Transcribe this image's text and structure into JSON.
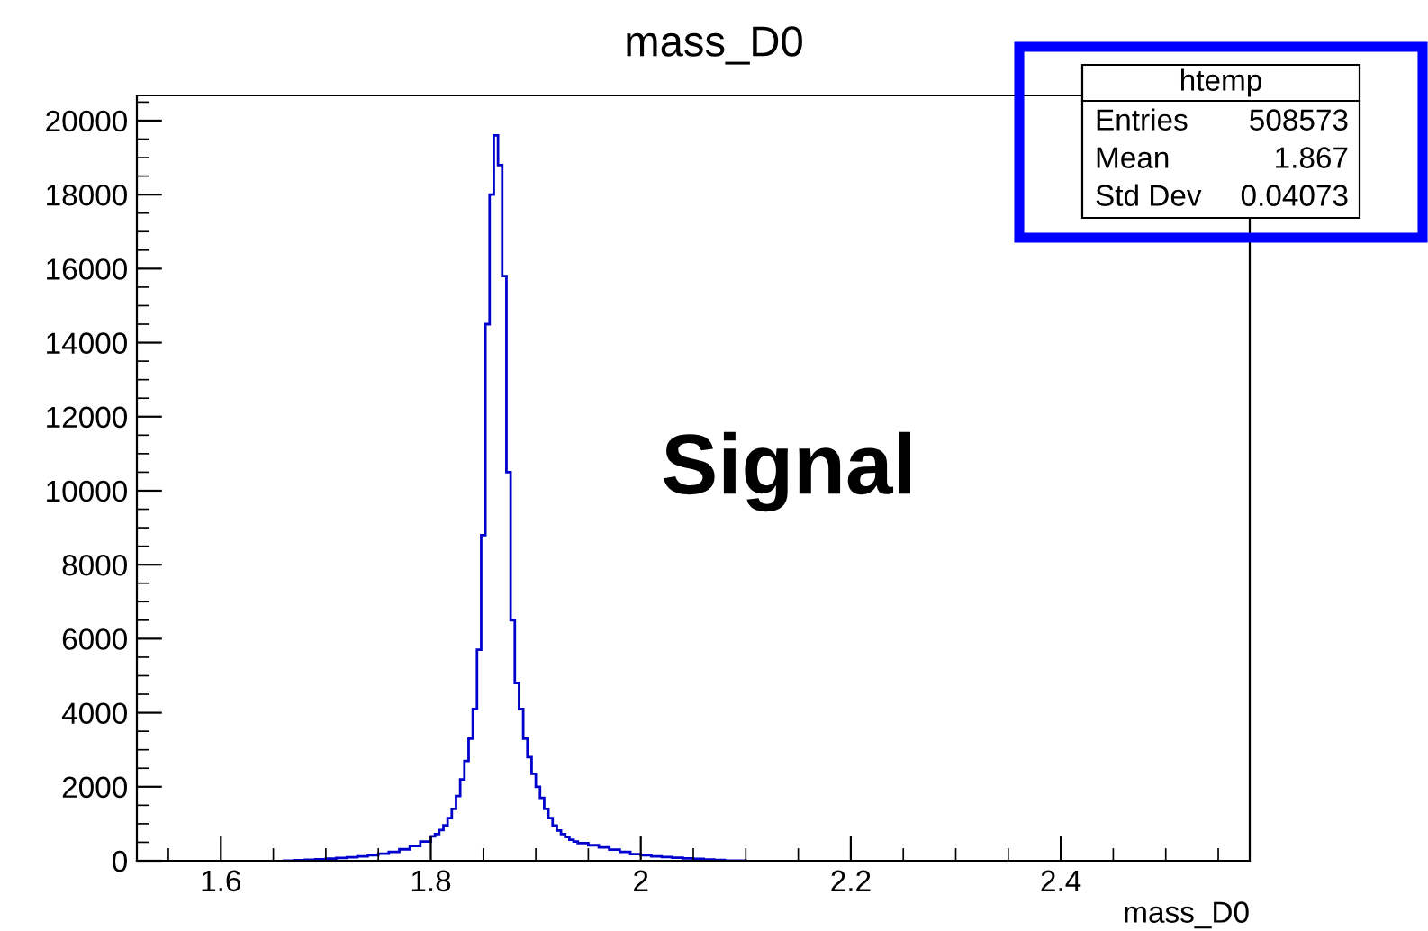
{
  "chart_data": {
    "type": "histogram",
    "title": "mass_D0",
    "xlabel": "mass_D0",
    "color": "#0000cc",
    "bins": [
      1.66,
      1.67,
      1.68,
      1.69,
      1.7,
      1.71,
      1.72,
      1.73,
      1.74,
      1.75,
      1.76,
      1.77,
      1.78,
      1.79,
      1.8,
      1.804,
      1.808,
      1.812,
      1.816,
      1.82,
      1.824,
      1.828,
      1.832,
      1.836,
      1.84,
      1.844,
      1.848,
      1.852,
      1.856,
      1.86,
      1.864,
      1.868,
      1.872,
      1.876,
      1.88,
      1.884,
      1.888,
      1.892,
      1.896,
      1.9,
      1.904,
      1.908,
      1.912,
      1.916,
      1.92,
      1.924,
      1.928,
      1.932,
      1.936,
      1.94,
      1.95,
      1.96,
      1.97,
      1.98,
      1.99,
      2.0,
      2.01,
      2.02,
      2.03,
      2.04,
      2.05,
      2.06,
      2.07,
      2.08,
      2.09,
      2.1
    ],
    "values": [
      5,
      15,
      25,
      40,
      55,
      75,
      95,
      120,
      150,
      190,
      240,
      310,
      400,
      520,
      660,
      720,
      830,
      960,
      1150,
      1400,
      1750,
      2200,
      2700,
      3300,
      4100,
      5700,
      8800,
      14500,
      18000,
      19600,
      18800,
      15800,
      10500,
      6500,
      4800,
      4100,
      3300,
      2800,
      2350,
      2000,
      1700,
      1400,
      1150,
      950,
      820,
      720,
      640,
      570,
      520,
      480,
      420,
      360,
      300,
      240,
      180,
      150,
      120,
      100,
      80,
      65,
      50,
      35,
      20,
      10,
      5
    ],
    "xlim": [
      1.52,
      2.58
    ],
    "xticks": [
      1.6,
      1.8,
      2,
      2.2,
      2.4
    ],
    "ylim": [
      0,
      20680
    ],
    "yticks": [
      0,
      2000,
      4000,
      6000,
      8000,
      10000,
      12000,
      14000,
      16000,
      18000,
      20000
    ],
    "grid": false,
    "annotations": [
      "Signal",
      "htemp",
      "Entries",
      "508573",
      "Mean",
      "1.867",
      "Std Dev",
      "0.04073"
    ]
  }
}
